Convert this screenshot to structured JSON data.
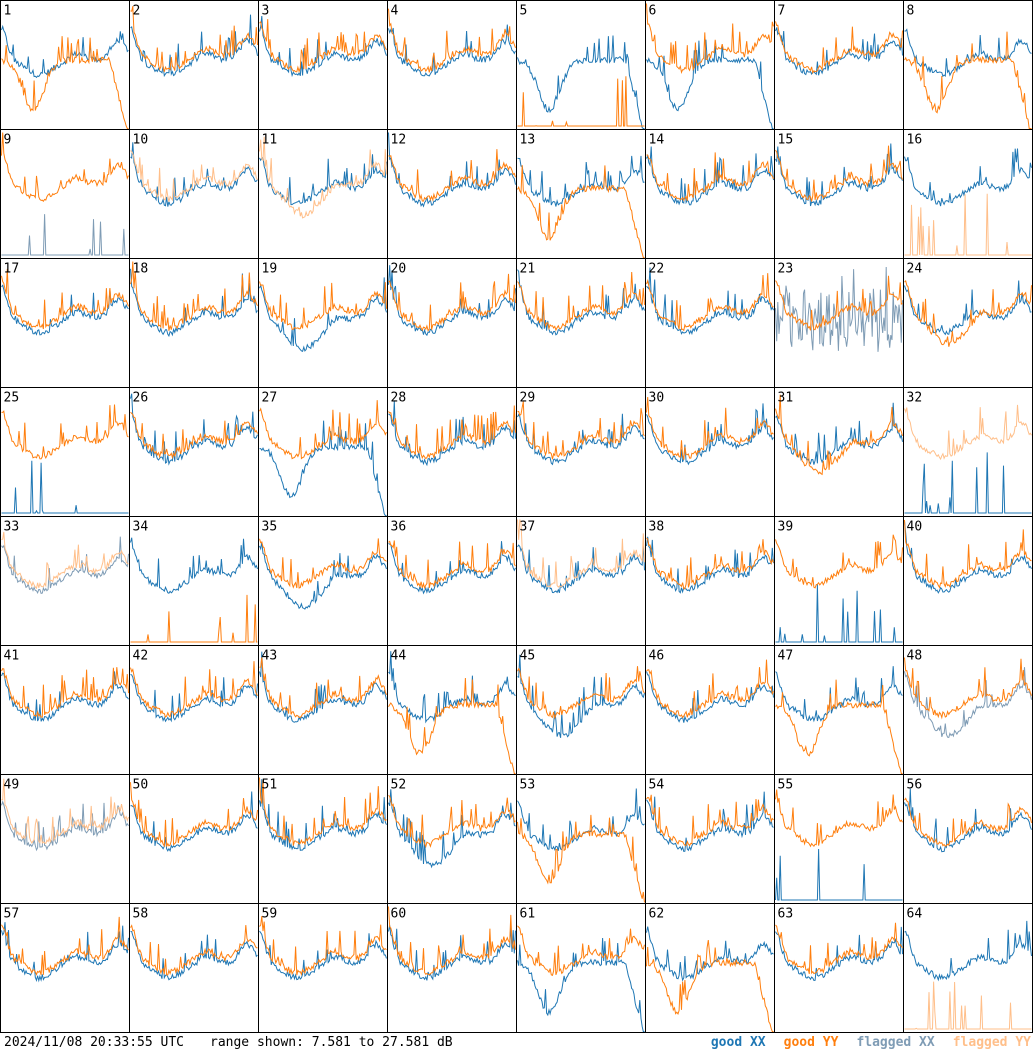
{
  "header": {
    "timestamp": "2024/11/08 20:33:55 UTC",
    "range": "range shown: 7.581 to 27.581 dB"
  },
  "legend": {
    "good_xx": "good XX",
    "good_yy": "good YY",
    "flagged_xx": "flagged XX",
    "flagged_yy": "flagged YY"
  },
  "colors": {
    "good_xx": "#1f77b4",
    "good_yy": "#ff7f0e",
    "flagged_xx": "#7f9cb5",
    "flagged_yy": "#ffbf8a",
    "grid": "#000000"
  },
  "chart_data": {
    "type": "line",
    "title": "",
    "ylim": [
      7.581,
      27.581
    ],
    "units": "dB",
    "grid": {
      "rows": 8,
      "cols": 8
    },
    "panels": [
      {
        "id": "1",
        "xx": "good",
        "yy": "good",
        "xx_shape": "normal",
        "yy_shape": "dip"
      },
      {
        "id": "2",
        "xx": "good",
        "yy": "good",
        "xx_shape": "normal",
        "yy_shape": "normal"
      },
      {
        "id": "3",
        "xx": "good",
        "yy": "good",
        "xx_shape": "normal",
        "yy_shape": "normal"
      },
      {
        "id": "4",
        "xx": "good",
        "yy": "good",
        "xx_shape": "normal",
        "yy_shape": "normal"
      },
      {
        "id": "5",
        "xx": "good",
        "yy": "good",
        "xx_shape": "dip",
        "yy_shape": "spikes"
      },
      {
        "id": "6",
        "xx": "good",
        "yy": "good",
        "xx_shape": "dip",
        "yy_shape": "normal"
      },
      {
        "id": "7",
        "xx": "good",
        "yy": "good",
        "xx_shape": "normal",
        "yy_shape": "normal"
      },
      {
        "id": "8",
        "xx": "good",
        "yy": "good",
        "xx_shape": "normal",
        "yy_shape": "dip"
      },
      {
        "id": "9",
        "xx": "flagged",
        "yy": "good",
        "xx_shape": "spikes",
        "yy_shape": "normal"
      },
      {
        "id": "10",
        "xx": "good",
        "yy": "flagged",
        "xx_shape": "normal",
        "yy_shape": "normal"
      },
      {
        "id": "11",
        "xx": "good",
        "yy": "flagged",
        "xx_shape": "normal",
        "yy_shape": "low"
      },
      {
        "id": "12",
        "xx": "good",
        "yy": "good",
        "xx_shape": "normal",
        "yy_shape": "normal"
      },
      {
        "id": "13",
        "xx": "good",
        "yy": "good",
        "xx_shape": "normal",
        "yy_shape": "dip"
      },
      {
        "id": "14",
        "xx": "good",
        "yy": "good",
        "xx_shape": "normal",
        "yy_shape": "normal"
      },
      {
        "id": "15",
        "xx": "good",
        "yy": "good",
        "xx_shape": "normal",
        "yy_shape": "normal"
      },
      {
        "id": "16",
        "xx": "good",
        "yy": "flagged",
        "xx_shape": "normal",
        "yy_shape": "spikes"
      },
      {
        "id": "17",
        "xx": "good",
        "yy": "good",
        "xx_shape": "normal",
        "yy_shape": "normal"
      },
      {
        "id": "18",
        "xx": "good",
        "yy": "good",
        "xx_shape": "normal",
        "yy_shape": "normal"
      },
      {
        "id": "19",
        "xx": "good",
        "yy": "good",
        "xx_shape": "low",
        "yy_shape": "normal"
      },
      {
        "id": "20",
        "xx": "good",
        "yy": "good",
        "xx_shape": "normal",
        "yy_shape": "normal"
      },
      {
        "id": "21",
        "xx": "good",
        "yy": "good",
        "xx_shape": "normal",
        "yy_shape": "normal"
      },
      {
        "id": "22",
        "xx": "good",
        "yy": "good",
        "xx_shape": "normal",
        "yy_shape": "normal"
      },
      {
        "id": "23",
        "xx": "flagged",
        "yy": "good",
        "xx_shape": "noisy",
        "yy_shape": "normal"
      },
      {
        "id": "24",
        "xx": "good",
        "yy": "good",
        "xx_shape": "normal",
        "yy_shape": "low"
      },
      {
        "id": "25",
        "xx": "good",
        "yy": "good",
        "xx_shape": "spikes",
        "yy_shape": "normal"
      },
      {
        "id": "26",
        "xx": "good",
        "yy": "good",
        "xx_shape": "normal",
        "yy_shape": "normal"
      },
      {
        "id": "27",
        "xx": "good",
        "yy": "good",
        "xx_shape": "dip",
        "yy_shape": "normal"
      },
      {
        "id": "28",
        "xx": "good",
        "yy": "good",
        "xx_shape": "normal",
        "yy_shape": "normal"
      },
      {
        "id": "29",
        "xx": "good",
        "yy": "good",
        "xx_shape": "normal",
        "yy_shape": "normal"
      },
      {
        "id": "30",
        "xx": "good",
        "yy": "good",
        "xx_shape": "normal",
        "yy_shape": "normal"
      },
      {
        "id": "31",
        "xx": "good",
        "yy": "good",
        "xx_shape": "normal",
        "yy_shape": "low"
      },
      {
        "id": "32",
        "xx": "good",
        "yy": "flagged",
        "xx_shape": "spikes",
        "yy_shape": "normal"
      },
      {
        "id": "33",
        "xx": "flagged",
        "yy": "flagged",
        "xx_shape": "normal",
        "yy_shape": "normal"
      },
      {
        "id": "34",
        "xx": "good",
        "yy": "good",
        "xx_shape": "normal",
        "yy_shape": "spikes"
      },
      {
        "id": "35",
        "xx": "good",
        "yy": "good",
        "xx_shape": "low",
        "yy_shape": "normal"
      },
      {
        "id": "36",
        "xx": "good",
        "yy": "good",
        "xx_shape": "normal",
        "yy_shape": "normal"
      },
      {
        "id": "37",
        "xx": "good",
        "yy": "flagged",
        "xx_shape": "normal",
        "yy_shape": "normal"
      },
      {
        "id": "38",
        "xx": "good",
        "yy": "good",
        "xx_shape": "normal",
        "yy_shape": "normal"
      },
      {
        "id": "39",
        "xx": "good",
        "yy": "good",
        "xx_shape": "spikes",
        "yy_shape": "normal"
      },
      {
        "id": "40",
        "xx": "good",
        "yy": "good",
        "xx_shape": "normal",
        "yy_shape": "normal"
      },
      {
        "id": "41",
        "xx": "good",
        "yy": "good",
        "xx_shape": "normal",
        "yy_shape": "normal"
      },
      {
        "id": "42",
        "xx": "good",
        "yy": "good",
        "xx_shape": "normal",
        "yy_shape": "normal"
      },
      {
        "id": "43",
        "xx": "good",
        "yy": "good",
        "xx_shape": "normal",
        "yy_shape": "normal"
      },
      {
        "id": "44",
        "xx": "good",
        "yy": "good",
        "xx_shape": "normal",
        "yy_shape": "dip"
      },
      {
        "id": "45",
        "xx": "good",
        "yy": "good",
        "xx_shape": "low",
        "yy_shape": "normal"
      },
      {
        "id": "46",
        "xx": "good",
        "yy": "good",
        "xx_shape": "normal",
        "yy_shape": "normal"
      },
      {
        "id": "47",
        "xx": "good",
        "yy": "good",
        "xx_shape": "normal",
        "yy_shape": "dip"
      },
      {
        "id": "48",
        "xx": "flagged",
        "yy": "good",
        "xx_shape": "low",
        "yy_shape": "normal"
      },
      {
        "id": "49",
        "xx": "flagged",
        "yy": "flagged",
        "xx_shape": "normal",
        "yy_shape": "normal"
      },
      {
        "id": "50",
        "xx": "good",
        "yy": "good",
        "xx_shape": "normal",
        "yy_shape": "normal"
      },
      {
        "id": "51",
        "xx": "good",
        "yy": "good",
        "xx_shape": "normal",
        "yy_shape": "normal"
      },
      {
        "id": "52",
        "xx": "good",
        "yy": "good",
        "xx_shape": "low",
        "yy_shape": "normal"
      },
      {
        "id": "53",
        "xx": "good",
        "yy": "good",
        "xx_shape": "normal",
        "yy_shape": "dip"
      },
      {
        "id": "54",
        "xx": "good",
        "yy": "good",
        "xx_shape": "normal",
        "yy_shape": "normal"
      },
      {
        "id": "55",
        "xx": "good",
        "yy": "good",
        "xx_shape": "spikes",
        "yy_shape": "normal"
      },
      {
        "id": "56",
        "xx": "good",
        "yy": "good",
        "xx_shape": "normal",
        "yy_shape": "normal"
      },
      {
        "id": "57",
        "xx": "good",
        "yy": "good",
        "xx_shape": "normal",
        "yy_shape": "normal"
      },
      {
        "id": "58",
        "xx": "good",
        "yy": "good",
        "xx_shape": "normal",
        "yy_shape": "normal"
      },
      {
        "id": "59",
        "xx": "good",
        "yy": "good",
        "xx_shape": "normal",
        "yy_shape": "normal"
      },
      {
        "id": "60",
        "xx": "good",
        "yy": "good",
        "xx_shape": "normal",
        "yy_shape": "normal"
      },
      {
        "id": "61",
        "xx": "good",
        "yy": "good",
        "xx_shape": "dip",
        "yy_shape": "normal"
      },
      {
        "id": "62",
        "xx": "good",
        "yy": "good",
        "xx_shape": "normal",
        "yy_shape": "dip"
      },
      {
        "id": "63",
        "xx": "good",
        "yy": "good",
        "xx_shape": "normal",
        "yy_shape": "normal"
      },
      {
        "id": "64",
        "xx": "good",
        "yy": "flagged",
        "xx_shape": "normal",
        "yy_shape": "spikes"
      }
    ]
  }
}
